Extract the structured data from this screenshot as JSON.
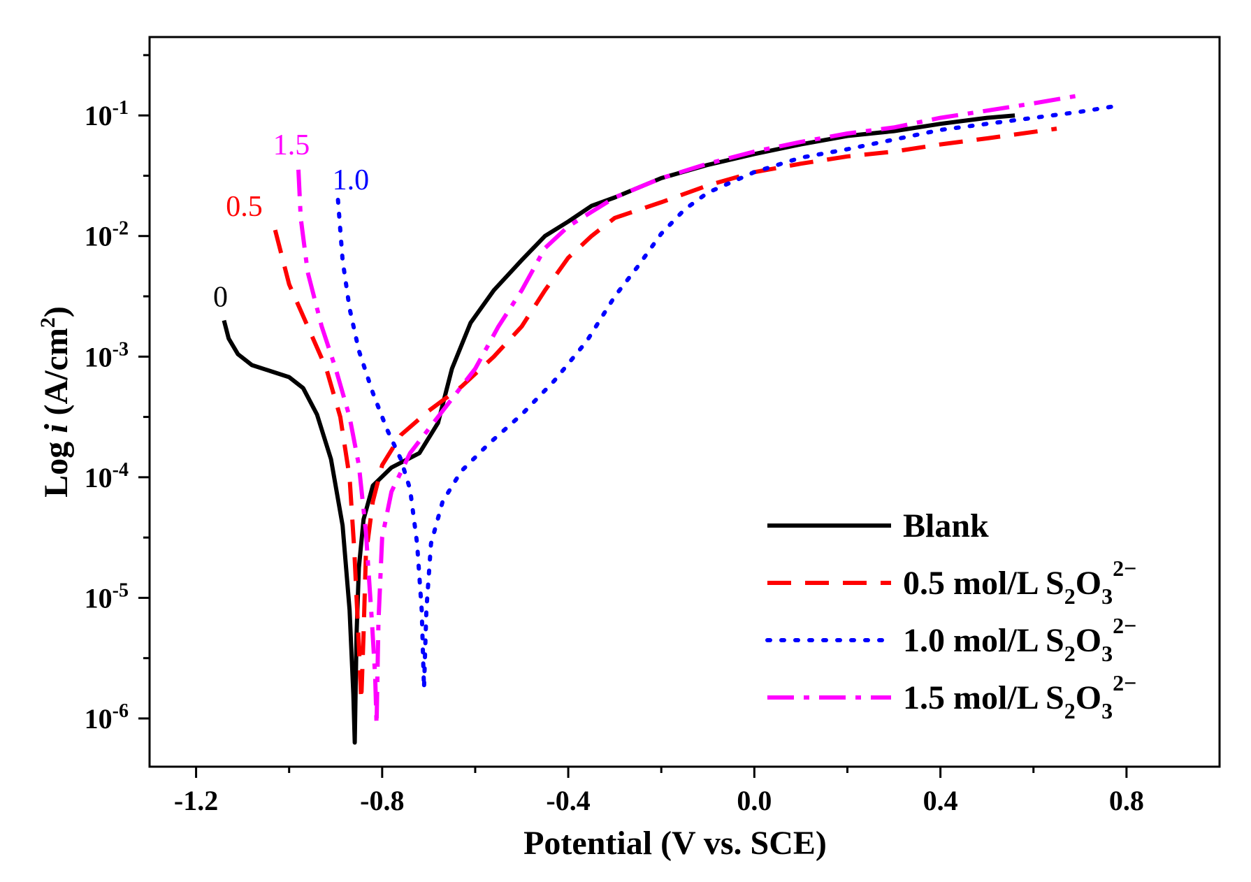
{
  "chart_data": {
    "type": "line",
    "title": "",
    "xlabel": "Potential (V vs. SCE)",
    "ylabel_prefix": "Log ",
    "ylabel_var": "i",
    "ylabel_unit_open": " (A/cm",
    "ylabel_unit_exp": "2",
    "ylabel_unit_close": ")",
    "xlim": [
      -1.3,
      1.0
    ],
    "ylim_log10": [
      -6.4,
      -0.35
    ],
    "x_ticks": [
      {
        "value": -1.2,
        "label": "-1.2"
      },
      {
        "value": -0.8,
        "label": "-0.8"
      },
      {
        "value": -0.4,
        "label": "-0.4"
      },
      {
        "value": 0.0,
        "label": "0.0"
      },
      {
        "value": 0.4,
        "label": "0.4"
      },
      {
        "value": 0.8,
        "label": "0.8"
      }
    ],
    "y_ticks": [
      {
        "exp": -1,
        "base": "10",
        "sup": "-1"
      },
      {
        "exp": -2,
        "base": "10",
        "sup": "-2"
      },
      {
        "exp": -3,
        "base": "10",
        "sup": "-3"
      },
      {
        "exp": -4,
        "base": "10",
        "sup": "-4"
      },
      {
        "exp": -5,
        "base": "10",
        "sup": "-5"
      },
      {
        "exp": -6,
        "base": "10",
        "sup": "-6"
      }
    ],
    "legend_position": "bottom-right",
    "series": [
      {
        "name": "Blank",
        "legend_label": "Blank",
        "legend_formula": false,
        "curve_label": "0",
        "color": "#000000",
        "dash": "solid",
        "points": [
          [
            -1.14,
            -2.7
          ],
          [
            -1.13,
            -2.85
          ],
          [
            -1.11,
            -2.98
          ],
          [
            -1.08,
            -3.07
          ],
          [
            -1.04,
            -3.12
          ],
          [
            -1.0,
            -3.17
          ],
          [
            -0.97,
            -3.26
          ],
          [
            -0.94,
            -3.48
          ],
          [
            -0.91,
            -3.85
          ],
          [
            -0.885,
            -4.4
          ],
          [
            -0.87,
            -5.1
          ],
          [
            -0.862,
            -5.8
          ],
          [
            -0.859,
            -6.2
          ],
          [
            -0.855,
            -5.3
          ],
          [
            -0.85,
            -4.75
          ],
          [
            -0.84,
            -4.35
          ],
          [
            -0.82,
            -4.07
          ],
          [
            -0.78,
            -3.92
          ],
          [
            -0.72,
            -3.8
          ],
          [
            -0.68,
            -3.55
          ],
          [
            -0.65,
            -3.1
          ],
          [
            -0.61,
            -2.72
          ],
          [
            -0.56,
            -2.45
          ],
          [
            -0.5,
            -2.2
          ],
          [
            -0.45,
            -2.0
          ],
          [
            -0.4,
            -1.88
          ],
          [
            -0.35,
            -1.75
          ],
          [
            -0.3,
            -1.68
          ],
          [
            -0.2,
            -1.52
          ],
          [
            -0.1,
            -1.41
          ],
          [
            0.0,
            -1.32
          ],
          [
            0.1,
            -1.24
          ],
          [
            0.2,
            -1.17
          ],
          [
            0.3,
            -1.13
          ],
          [
            0.4,
            -1.07
          ],
          [
            0.5,
            -1.02
          ],
          [
            0.56,
            -1.0
          ]
        ]
      },
      {
        "name": "0.5 mol/L S2O3 2-",
        "legend_label": "0.5 mol/L S",
        "legend_formula": true,
        "curve_label": "0.5",
        "color": "#ff0000",
        "dash": "dashed",
        "points": [
          [
            -1.03,
            -1.95
          ],
          [
            -1.0,
            -2.4
          ],
          [
            -0.96,
            -2.75
          ],
          [
            -0.92,
            -3.1
          ],
          [
            -0.89,
            -3.5
          ],
          [
            -0.87,
            -4.0
          ],
          [
            -0.86,
            -4.6
          ],
          [
            -0.85,
            -5.4
          ],
          [
            -0.845,
            -5.85
          ],
          [
            -0.84,
            -5.3
          ],
          [
            -0.835,
            -4.65
          ],
          [
            -0.82,
            -4.2
          ],
          [
            -0.8,
            -3.9
          ],
          [
            -0.76,
            -3.65
          ],
          [
            -0.7,
            -3.45
          ],
          [
            -0.63,
            -3.25
          ],
          [
            -0.56,
            -3.0
          ],
          [
            -0.5,
            -2.75
          ],
          [
            -0.45,
            -2.45
          ],
          [
            -0.4,
            -2.18
          ],
          [
            -0.35,
            -2.0
          ],
          [
            -0.3,
            -1.85
          ],
          [
            -0.2,
            -1.72
          ],
          [
            -0.1,
            -1.58
          ],
          [
            0.0,
            -1.47
          ],
          [
            0.1,
            -1.4
          ],
          [
            0.2,
            -1.34
          ],
          [
            0.3,
            -1.3
          ],
          [
            0.4,
            -1.24
          ],
          [
            0.5,
            -1.19
          ],
          [
            0.65,
            -1.11
          ]
        ]
      },
      {
        "name": "1.0 mol/L S2O3 2-",
        "legend_label": "1.0 mol/L S",
        "legend_formula": true,
        "curve_label": "1.0",
        "color": "#0000ff",
        "dash": "dotted",
        "points": [
          [
            -0.895,
            -1.7
          ],
          [
            -0.885,
            -2.2
          ],
          [
            -0.87,
            -2.6
          ],
          [
            -0.85,
            -2.95
          ],
          [
            -0.82,
            -3.3
          ],
          [
            -0.79,
            -3.6
          ],
          [
            -0.76,
            -3.85
          ],
          [
            -0.74,
            -4.1
          ],
          [
            -0.725,
            -4.55
          ],
          [
            -0.715,
            -5.1
          ],
          [
            -0.712,
            -5.5
          ],
          [
            -0.71,
            -5.75
          ],
          [
            -0.705,
            -5.1
          ],
          [
            -0.695,
            -4.55
          ],
          [
            -0.67,
            -4.2
          ],
          [
            -0.63,
            -3.95
          ],
          [
            -0.57,
            -3.72
          ],
          [
            -0.5,
            -3.48
          ],
          [
            -0.43,
            -3.2
          ],
          [
            -0.36,
            -2.87
          ],
          [
            -0.3,
            -2.5
          ],
          [
            -0.25,
            -2.25
          ],
          [
            -0.2,
            -1.98
          ],
          [
            -0.15,
            -1.78
          ],
          [
            -0.1,
            -1.64
          ],
          [
            0.0,
            -1.47
          ],
          [
            0.1,
            -1.35
          ],
          [
            0.2,
            -1.28
          ],
          [
            0.3,
            -1.2
          ],
          [
            0.4,
            -1.12
          ],
          [
            0.5,
            -1.07
          ],
          [
            0.6,
            -1.02
          ],
          [
            0.7,
            -0.97
          ],
          [
            0.78,
            -0.92
          ]
        ]
      },
      {
        "name": "1.5 mol/L S2O3 2-",
        "legend_label": "1.5 mol/L S",
        "legend_formula": true,
        "curve_label": "1.5",
        "color": "#ff00ff",
        "dash": "dashdot",
        "points": [
          [
            -0.98,
            -1.45
          ],
          [
            -0.975,
            -1.85
          ],
          [
            -0.96,
            -2.3
          ],
          [
            -0.93,
            -2.75
          ],
          [
            -0.9,
            -3.1
          ],
          [
            -0.87,
            -3.5
          ],
          [
            -0.85,
            -3.9
          ],
          [
            -0.835,
            -4.45
          ],
          [
            -0.822,
            -5.2
          ],
          [
            -0.815,
            -5.65
          ],
          [
            -0.812,
            -6.05
          ],
          [
            -0.808,
            -5.2
          ],
          [
            -0.8,
            -4.5
          ],
          [
            -0.78,
            -4.12
          ],
          [
            -0.74,
            -3.8
          ],
          [
            -0.68,
            -3.5
          ],
          [
            -0.6,
            -3.1
          ],
          [
            -0.55,
            -2.75
          ],
          [
            -0.5,
            -2.45
          ],
          [
            -0.45,
            -2.1
          ],
          [
            -0.4,
            -1.92
          ],
          [
            -0.35,
            -1.8
          ],
          [
            -0.3,
            -1.68
          ],
          [
            -0.2,
            -1.52
          ],
          [
            -0.1,
            -1.4
          ],
          [
            0.0,
            -1.3
          ],
          [
            0.1,
            -1.22
          ],
          [
            0.2,
            -1.15
          ],
          [
            0.3,
            -1.1
          ],
          [
            0.4,
            -1.02
          ],
          [
            0.5,
            -0.96
          ],
          [
            0.6,
            -0.9
          ],
          [
            0.69,
            -0.84
          ]
        ]
      }
    ],
    "legend_formula_parts": {
      "sub1": "2",
      "mid": "O",
      "sub2": "3",
      "sup": "2−"
    }
  }
}
